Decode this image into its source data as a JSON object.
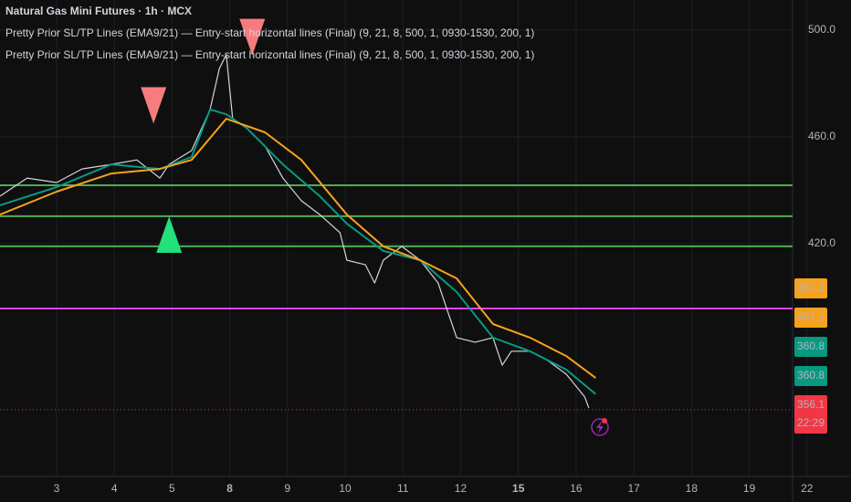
{
  "chart_data": {
    "type": "line",
    "title": "Natural Gas Mini Futures · 1h · MCX",
    "indicators": [
      "Pretty Prior SL/TP Lines (EMA9/21) — Entry-start horizontal lines (Final) (9, 21, 8, 500, 1, 0930-1530, 200, 1)",
      "Pretty Prior SL/TP Lines (EMA9/21) — Entry-start horizontal lines (Final) (9, 21, 8, 500, 1, 0930-1530, 200, 1)"
    ],
    "xlim": [
      -0.98,
      12.75
    ],
    "ylim": [
      332.8,
      511.3
    ],
    "xticks": [
      {
        "value": 0,
        "label": "3"
      },
      {
        "value": 1,
        "label": "4"
      },
      {
        "value": 2,
        "label": "5"
      },
      {
        "value": 3,
        "label": "8",
        "bold": true
      },
      {
        "value": 4,
        "label": "9"
      },
      {
        "value": 5,
        "label": "10"
      },
      {
        "value": 6,
        "label": "11"
      },
      {
        "value": 7,
        "label": "12"
      },
      {
        "value": 8,
        "label": "15",
        "bold": true
      },
      {
        "value": 9,
        "label": "16"
      },
      {
        "value": 10,
        "label": "17"
      },
      {
        "value": 11,
        "label": "18"
      },
      {
        "value": 12,
        "label": "19"
      },
      {
        "value": 13,
        "label": "22"
      }
    ],
    "yticks": [
      {
        "value": 500,
        "label": "500.0"
      },
      {
        "value": 460,
        "label": "460.0"
      },
      {
        "value": 420,
        "label": "420.0"
      }
    ],
    "series": [
      {
        "color": "#d1d4dc",
        "width": 1.2,
        "x": [
          -0.98,
          -0.51,
          0,
          0.44,
          0.95,
          1.39,
          1.79,
          1.95,
          2.34,
          2.66,
          2.82,
          2.94,
          3.05,
          3.29,
          3.61,
          3.92,
          4.24,
          4.56,
          4.91,
          5.03,
          5.35,
          5.51,
          5.66,
          5.98,
          6.3,
          6.61,
          6.77,
          6.93,
          7.25,
          7.56,
          7.72,
          7.88,
          8.2,
          8.51,
          8.83,
          9.15,
          9.22
        ],
        "values": [
          437.8,
          444.6,
          442.9,
          448.0,
          449.7,
          451.4,
          444.6,
          449.7,
          454.9,
          470.3,
          485.6,
          490.8,
          466.8,
          463.4,
          456.6,
          444.6,
          436.1,
          430.9,
          424.1,
          413.8,
          412.1,
          405.3,
          413.8,
          419.0,
          413.8,
          405.3,
          395.0,
          384.8,
          383.1,
          384.8,
          374.5,
          379.7,
          379.7,
          376.2,
          371.1,
          362.6,
          358.5
        ]
      },
      {
        "color": "#089981",
        "width": 2,
        "x": [
          -0.98,
          0,
          0.95,
          1.79,
          2.34,
          2.66,
          2.94,
          3.29,
          3.92,
          4.56,
          5.03,
          5.66,
          6.3,
          6.93,
          7.56,
          8.2,
          8.83,
          9.34
        ],
        "values": [
          434.4,
          441.2,
          449.7,
          448.0,
          452.5,
          470.3,
          468.5,
          463.4,
          449.7,
          437.8,
          427.5,
          417.3,
          413.8,
          401.9,
          384.8,
          379.7,
          372.8,
          363.6
        ]
      },
      {
        "color": "#f7a21b",
        "width": 2,
        "x": [
          -0.98,
          0,
          0.95,
          1.79,
          2.34,
          2.94,
          3.61,
          4.24,
          5.03,
          5.66,
          6.3,
          6.93,
          7.56,
          8.2,
          8.83,
          9.34
        ],
        "values": [
          430.9,
          439.5,
          446.3,
          448.0,
          451.4,
          466.8,
          461.7,
          451.4,
          430.9,
          419.0,
          413.8,
          407.0,
          389.9,
          384.8,
          377.9,
          369.7
        ]
      }
    ],
    "hlines": [
      {
        "value": 441.9,
        "color": "#4caf50",
        "x0": -0.98
      },
      {
        "value": 430.3,
        "color": "#4caf50",
        "x0": -0.98
      },
      {
        "value": 419.0,
        "color": "#4caf50",
        "x0": -0.98
      },
      {
        "value": 395.7,
        "color": "#e040fb",
        "x0": -0.98
      },
      {
        "value": 357.8,
        "color": "#f23645",
        "x0": -0.98,
        "dotted": true
      }
    ],
    "signals": [
      {
        "x": 1.68,
        "y": 471.8,
        "dir": "down",
        "color": "#f77c80"
      },
      {
        "x": 3.39,
        "y": 497.4,
        "dir": "down",
        "color": "#f77c80"
      },
      {
        "x": 1.95,
        "y": 423.4,
        "dir": "up",
        "color": "#22e07a"
      }
    ],
    "price_labels": [
      {
        "label": "367.2",
        "color": "#f7a21b"
      },
      {
        "label": "367.2",
        "color": "#f7a21b"
      },
      {
        "label": "360.8",
        "color": "#089981"
      },
      {
        "label": "360.8",
        "color": "#089981"
      },
      {
        "label": "356.1",
        "color": "#f23645"
      },
      {
        "label": "22:29",
        "color": "#f23645"
      }
    ]
  }
}
